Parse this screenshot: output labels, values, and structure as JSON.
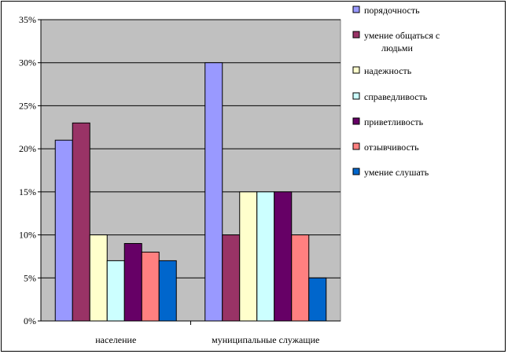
{
  "chart_data": {
    "type": "bar",
    "categories": [
      "население",
      "муниципальные служащие"
    ],
    "series": [
      {
        "name": "порядочность",
        "values": [
          21,
          30
        ],
        "color": "#9999ff"
      },
      {
        "name": "умение общаться  с людьми",
        "values": [
          23,
          10
        ],
        "color": "#993366"
      },
      {
        "name": "надежность",
        "values": [
          10,
          15
        ],
        "color": "#ffffcc"
      },
      {
        "name": "справедливость",
        "values": [
          7,
          15
        ],
        "color": "#ccffff"
      },
      {
        "name": "приветливость",
        "values": [
          9,
          15
        ],
        "color": "#660066"
      },
      {
        "name": "отзывчивость",
        "values": [
          8,
          10
        ],
        "color": "#ff8080"
      },
      {
        "name": "умение слушать",
        "values": [
          7,
          5
        ],
        "color": "#0066cc"
      }
    ],
    "y_ticks": [
      "0%",
      "5%",
      "10%",
      "15%",
      "20%",
      "25%",
      "30%",
      "35%"
    ],
    "ylim": [
      0,
      35
    ],
    "y_unit": "%",
    "grid": true,
    "plot_background": "#c0c0c0",
    "legend_position": "right"
  }
}
